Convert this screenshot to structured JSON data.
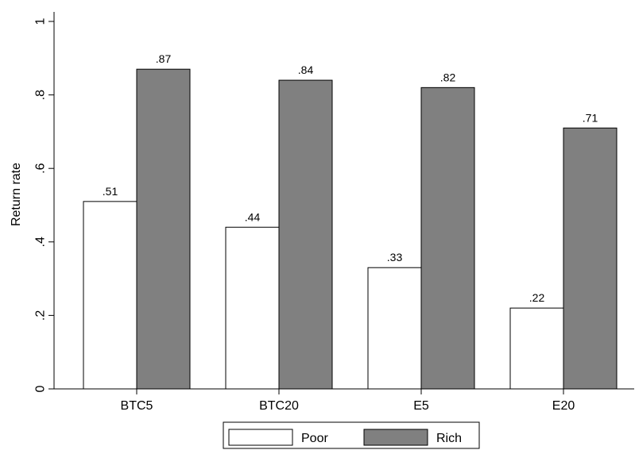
{
  "chart_data": {
    "type": "bar",
    "categories": [
      "BTC5",
      "BTC20",
      "E5",
      "E20"
    ],
    "series": [
      {
        "name": "Poor",
        "values": [
          0.51,
          0.44,
          0.33,
          0.22
        ],
        "labels": [
          ".51",
          ".44",
          ".33",
          ".22"
        ],
        "color": "#ffffff"
      },
      {
        "name": "Rich",
        "values": [
          0.87,
          0.84,
          0.82,
          0.71
        ],
        "labels": [
          ".87",
          ".84",
          ".82",
          ".71"
        ],
        "color": "#808080"
      }
    ],
    "title": "",
    "xlabel": "",
    "ylabel": "Return rate",
    "ylim": [
      0,
      1
    ],
    "yticks": [
      0,
      0.2,
      0.4,
      0.6,
      0.8,
      1
    ],
    "ytick_labels": [
      "0",
      ".2",
      ".4",
      ".6",
      ".8",
      "1"
    ],
    "grid": false,
    "legend_position": "bottom"
  }
}
